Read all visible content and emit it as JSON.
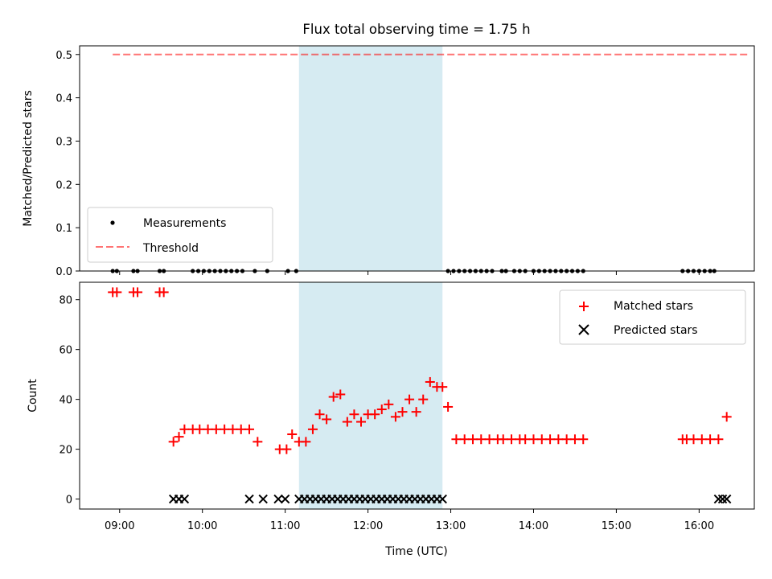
{
  "chart_data": {
    "title": "Flux total observing time = 1.75 h",
    "xlabel": "Time (UTC)",
    "xlim": [
      "08:31",
      "16:40"
    ],
    "xticks": [
      "09:00",
      "10:00",
      "11:00",
      "12:00",
      "13:00",
      "14:00",
      "15:00",
      "16:00"
    ],
    "highlight_span": [
      "11:10",
      "12:54"
    ],
    "highlight_color": "#add8e6",
    "panels": [
      {
        "type": "scatter",
        "ylabel": "Matched/Predicted stars",
        "ylim": [
          0,
          0.52
        ],
        "yticks": [
          "0.0",
          "0.1",
          "0.2",
          "0.3",
          "0.4",
          "0.5"
        ],
        "legend": "lower-left",
        "threshold": {
          "name": "Threshold",
          "y": 0.5,
          "x": [
            "08:55",
            "16:35"
          ],
          "color": "#ff0000",
          "style": "dashed"
        },
        "series": [
          {
            "name": "Measurements",
            "marker": "dot",
            "color": "#000000",
            "x": [
              "08:55",
              "08:58",
              "09:10",
              "09:13",
              "09:29",
              "09:32",
              "09:53",
              "09:57",
              "10:01",
              "10:05",
              "10:09",
              "10:13",
              "10:17",
              "10:21",
              "10:25",
              "10:29",
              "10:38",
              "10:47",
              "11:02",
              "11:08",
              "12:58",
              "13:02",
              "13:06",
              "13:10",
              "13:14",
              "13:18",
              "13:22",
              "13:26",
              "13:30",
              "13:37",
              "13:40",
              "13:46",
              "13:50",
              "13:54",
              "14:00",
              "14:04",
              "14:08",
              "14:12",
              "14:16",
              "14:20",
              "14:24",
              "14:28",
              "14:32",
              "14:36",
              "15:48",
              "15:52",
              "15:56",
              "16:00",
              "16:04",
              "16:08",
              "16:11"
            ],
            "y": [
              0,
              0,
              0,
              0,
              0,
              0,
              0,
              0,
              0,
              0,
              0,
              0,
              0,
              0,
              0,
              0,
              0,
              0,
              0,
              0,
              0,
              0,
              0,
              0,
              0,
              0,
              0,
              0,
              0,
              0,
              0,
              0,
              0,
              0,
              0,
              0,
              0,
              0,
              0,
              0,
              0,
              0,
              0,
              0,
              0,
              0,
              0,
              0,
              0,
              0,
              0
            ]
          }
        ]
      },
      {
        "type": "scatter",
        "ylabel": "Count",
        "ylim": [
          -4,
          87
        ],
        "yticks": [
          "0",
          "20",
          "40",
          "60",
          "80"
        ],
        "legend": "upper-right",
        "series": [
          {
            "name": "Matched stars",
            "marker": "plus",
            "color": "#ff0000",
            "x": [
              "08:55",
              "08:58",
              "09:10",
              "09:13",
              "09:29",
              "09:32",
              "09:39",
              "09:43",
              "09:47",
              "09:53",
              "09:58",
              "10:04",
              "10:10",
              "10:16",
              "10:22",
              "10:28",
              "10:34",
              "10:40",
              "10:56",
              "11:01",
              "11:05",
              "11:10",
              "11:15",
              "11:20",
              "11:25",
              "11:30",
              "11:35",
              "11:40",
              "11:45",
              "11:50",
              "11:55",
              "12:00",
              "12:05",
              "12:10",
              "12:15",
              "12:20",
              "12:25",
              "12:30",
              "12:35",
              "12:40",
              "12:45",
              "12:50",
              "12:54",
              "12:58",
              "13:04",
              "13:10",
              "13:16",
              "13:22",
              "13:28",
              "13:34",
              "13:38",
              "13:44",
              "13:50",
              "13:54",
              "14:00",
              "14:06",
              "14:12",
              "14:18",
              "14:24",
              "14:30",
              "14:36",
              "15:48",
              "15:51",
              "15:56",
              "16:02",
              "16:08",
              "16:14",
              "16:20"
            ],
            "y": [
              83,
              83,
              83,
              83,
              83,
              83,
              23,
              25,
              28,
              28,
              28,
              28,
              28,
              28,
              28,
              28,
              28,
              23,
              20,
              20,
              26,
              23,
              23,
              28,
              34,
              32,
              41,
              42,
              31,
              34,
              31,
              34,
              34,
              36,
              38,
              33,
              35,
              40,
              35,
              40,
              47,
              45,
              45,
              37,
              24,
              24,
              24,
              24,
              24,
              24,
              24,
              24,
              24,
              24,
              24,
              24,
              24,
              24,
              24,
              24,
              24,
              24,
              24,
              24,
              24,
              24,
              24,
              33
            ]
          },
          {
            "name": "Predicted stars",
            "marker": "x",
            "color": "#000000",
            "x": [
              "09:39",
              "09:43",
              "09:47",
              "10:34",
              "10:44",
              "10:55",
              "11:00",
              "11:10",
              "11:14",
              "11:18",
              "11:22",
              "11:26",
              "11:30",
              "11:34",
              "11:38",
              "11:42",
              "11:46",
              "11:50",
              "11:54",
              "11:58",
              "12:02",
              "12:06",
              "12:10",
              "12:14",
              "12:18",
              "12:22",
              "12:26",
              "12:30",
              "12:34",
              "12:38",
              "12:42",
              "12:46",
              "12:50",
              "12:54",
              "16:14",
              "16:17",
              "16:20"
            ],
            "y": [
              0,
              0,
              0,
              0,
              0,
              0,
              0,
              0,
              0,
              0,
              0,
              0,
              0,
              0,
              0,
              0,
              0,
              0,
              0,
              0,
              0,
              0,
              0,
              0,
              0,
              0,
              0,
              0,
              0,
              0,
              0,
              0,
              0,
              0,
              0,
              0,
              0
            ]
          }
        ]
      }
    ]
  }
}
